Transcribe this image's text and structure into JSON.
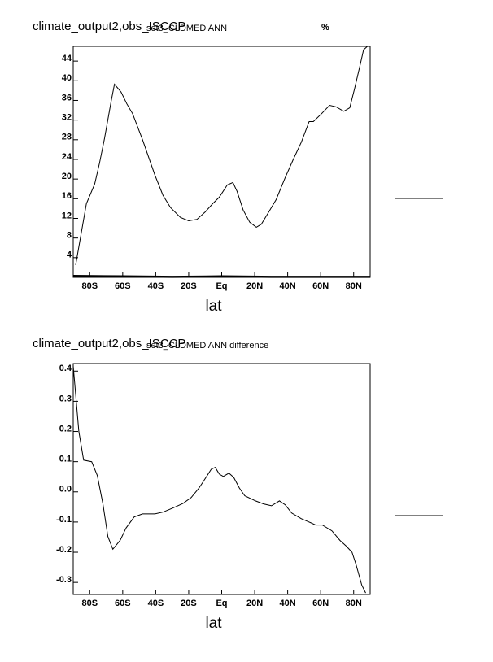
{
  "chart_data": [
    {
      "type": "line",
      "title": "climate_output2,obs_ISCCP",
      "subtitle": "set3_CLDMED ANN",
      "units": "%",
      "xlabel": "lat",
      "xlim": [
        -90,
        90
      ],
      "ylim": [
        0,
        47
      ],
      "xticks": [
        {
          "value": -80,
          "label": "80S"
        },
        {
          "value": -60,
          "label": "60S"
        },
        {
          "value": -40,
          "label": "40S"
        },
        {
          "value": -20,
          "label": "20S"
        },
        {
          "value": 0,
          "label": "Eq"
        },
        {
          "value": 20,
          "label": "20N"
        },
        {
          "value": 40,
          "label": "40N"
        },
        {
          "value": 60,
          "label": "60N"
        },
        {
          "value": 80,
          "label": "80N"
        }
      ],
      "yticks": [
        4,
        8,
        12,
        16,
        20,
        24,
        28,
        32,
        36,
        40,
        44
      ],
      "series": [
        {
          "color": "#000000",
          "x": [
            -88.5,
            -82,
            -77,
            -74,
            -71,
            -67,
            -65,
            -61,
            -57.5,
            -54,
            -48,
            -40.5,
            -35.6,
            -31,
            -25,
            -20,
            -15,
            -10,
            -5.4,
            -1.5,
            3.4,
            6.8,
            9.3,
            13,
            17,
            21,
            24,
            28,
            33,
            38.5,
            43.4,
            48.3,
            53,
            55.6,
            60.5,
            65.4,
            69.3,
            74,
            77.6,
            80.5,
            84,
            86,
            88.3
          ],
          "values": [
            2.5,
            15,
            19,
            23.3,
            28.3,
            35.8,
            39.3,
            37.7,
            35.3,
            33.3,
            28,
            20.8,
            16.7,
            14.2,
            12.2,
            11.5,
            11.8,
            13.3,
            15,
            16.3,
            18.8,
            19.3,
            17.5,
            13.7,
            11.2,
            10.2,
            10.8,
            13,
            15.8,
            20.3,
            24,
            27.5,
            31.7,
            31.7,
            33.3,
            35,
            34.7,
            33.8,
            34.5,
            38.3,
            43.3,
            46.3,
            47
          ]
        },
        {
          "color": "#000000",
          "x": [
            -90,
            -60,
            -30,
            0,
            30,
            60,
            90
          ],
          "values": [
            0.3,
            0.2,
            0.1,
            0.2,
            0.1,
            0.1,
            0.1
          ]
        }
      ]
    },
    {
      "type": "line",
      "title": "climate_output2,obs_ISCCP",
      "subtitle": "set3_CLDMED ANN difference",
      "xlabel": "lat",
      "xlim": [
        -90,
        90
      ],
      "ylim": [
        -0.34,
        0.425
      ],
      "xticks": [
        {
          "value": -80,
          "label": "80S"
        },
        {
          "value": -60,
          "label": "60S"
        },
        {
          "value": -40,
          "label": "40S"
        },
        {
          "value": -20,
          "label": "20S"
        },
        {
          "value": 0,
          "label": "Eq"
        },
        {
          "value": 20,
          "label": "20N"
        },
        {
          "value": 40,
          "label": "40N"
        },
        {
          "value": 60,
          "label": "60N"
        },
        {
          "value": 80,
          "label": "80N"
        }
      ],
      "yticks": [
        0.4,
        0.3,
        0.2,
        0.1,
        {
          "value": 0,
          "label": "0.0"
        },
        -0.1,
        -0.2,
        -0.3
      ],
      "series": [
        {
          "color": "#000000",
          "x": [
            -90,
            -86.6,
            -83.7,
            -78.8,
            -75.4,
            -72,
            -69,
            -66,
            -61.5,
            -58,
            -53,
            -48,
            -40.5,
            -35.6,
            -29.8,
            -23.4,
            -18.5,
            -13.7,
            -8.8,
            -6.3,
            -3.9,
            -1.5,
            1,
            4.4,
            7.3,
            10.7,
            14,
            20.5,
            25.4,
            30.2,
            35,
            38.5,
            42.4,
            48.3,
            53,
            57,
            61,
            66.8,
            71.7,
            75.6,
            79,
            81.5,
            84.9,
            87.3
          ],
          "values": [
            0.417,
            0.2,
            0.105,
            0.1,
            0.054,
            -0.04,
            -0.148,
            -0.19,
            -0.16,
            -0.12,
            -0.083,
            -0.073,
            -0.073,
            -0.067,
            -0.054,
            -0.038,
            -0.019,
            0.013,
            0.054,
            0.075,
            0.081,
            0.059,
            0.051,
            0.062,
            0.048,
            0.013,
            -0.013,
            -0.03,
            -0.04,
            -0.046,
            -0.03,
            -0.043,
            -0.07,
            -0.089,
            -0.1,
            -0.11,
            -0.11,
            -0.129,
            -0.161,
            -0.18,
            -0.2,
            -0.242,
            -0.309,
            -0.335
          ]
        }
      ]
    }
  ]
}
